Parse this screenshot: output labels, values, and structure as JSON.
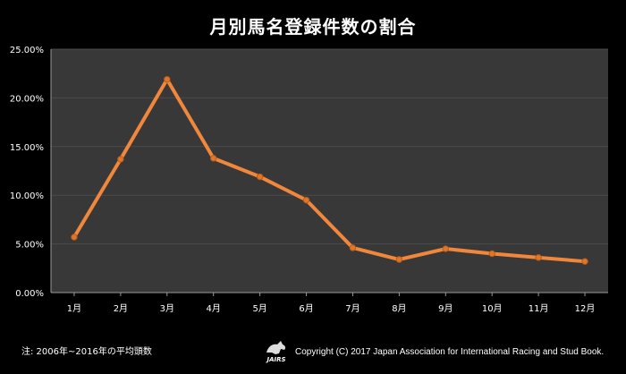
{
  "chart_data": {
    "type": "line",
    "title": "月別馬名登録件数の割合",
    "categories": [
      "1月",
      "2月",
      "3月",
      "4月",
      "5月",
      "6月",
      "7月",
      "8月",
      "9月",
      "10月",
      "11月",
      "12月"
    ],
    "series": [
      {
        "values": [
          5.7,
          13.7,
          21.9,
          13.8,
          11.9,
          9.5,
          4.6,
          3.4,
          4.5,
          4.0,
          3.6,
          3.2
        ]
      }
    ],
    "ylim": [
      0,
      25
    ],
    "yticks": [
      "0.00%",
      "5.00%",
      "10.00%",
      "15.00%",
      "20.00%",
      "25.00%"
    ],
    "ytick_values": [
      0,
      5,
      10,
      15,
      20,
      25
    ],
    "grid": true,
    "colors": {
      "line": "#f0873c",
      "marker": "#e07628",
      "plot_bg": "#383838",
      "gridline": "#4a4a4a"
    }
  },
  "footnote": "注: 2006年~2016年の平均頭数",
  "logo_text": "JAIRS",
  "copyright": "Copyright (C) 2017  Japan Association for International Racing and Stud Book."
}
